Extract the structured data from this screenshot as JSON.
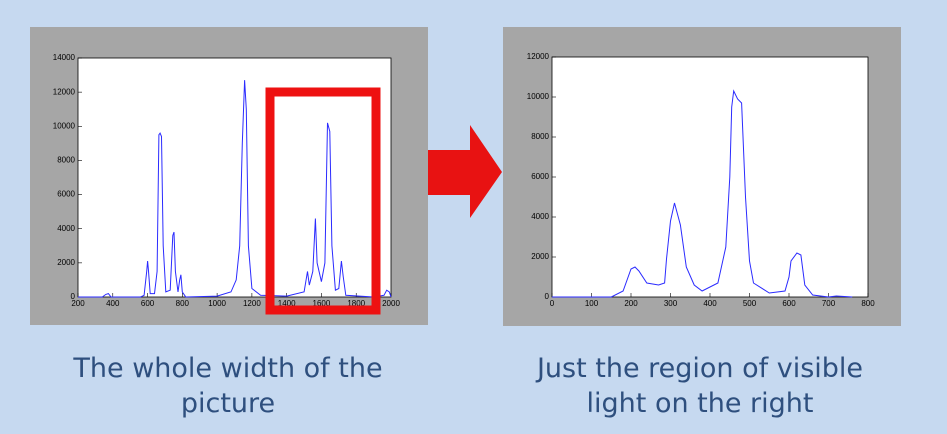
{
  "chart_data": [
    {
      "type": "line",
      "color": "#2b2bff",
      "x": [
        200,
        340,
        360,
        375,
        390,
        420,
        560,
        580,
        595,
        600,
        605,
        615,
        640,
        655,
        665,
        672,
        680,
        690,
        705,
        730,
        745,
        752,
        760,
        775,
        785,
        792,
        800,
        820,
        1000,
        1080,
        1110,
        1130,
        1145,
        1158,
        1168,
        1180,
        1200,
        1250,
        1400,
        1500,
        1520,
        1530,
        1550,
        1565,
        1575,
        1600,
        1620,
        1635,
        1648,
        1660,
        1680,
        1700,
        1715,
        1725,
        1740,
        1900,
        1960,
        1975,
        1990,
        2000
      ],
      "values": [
        0,
        0,
        150,
        200,
        0,
        0,
        0,
        100,
        1500,
        2100,
        1600,
        200,
        200,
        1500,
        9500,
        9600,
        9400,
        3000,
        300,
        400,
        3600,
        3800,
        1500,
        300,
        1000,
        1300,
        300,
        0,
        50,
        300,
        1000,
        3000,
        9000,
        12700,
        11000,
        3000,
        500,
        100,
        50,
        300,
        1500,
        700,
        1500,
        4600,
        2000,
        900,
        2000,
        10200,
        9700,
        3000,
        400,
        500,
        2100,
        1200,
        100,
        0,
        100,
        400,
        300,
        0
      ],
      "xlim": [
        200,
        2000
      ],
      "xticks": [
        200,
        400,
        600,
        800,
        1000,
        1200,
        1400,
        1600,
        1800,
        2000
      ],
      "ylim": [
        0,
        14000
      ],
      "yticks": [
        0,
        2000,
        4000,
        6000,
        8000,
        10000,
        12000,
        14000
      ]
    },
    {
      "type": "line",
      "color": "#2b2bff",
      "x": [
        0,
        150,
        180,
        200,
        210,
        220,
        240,
        270,
        285,
        290,
        300,
        310,
        325,
        340,
        360,
        380,
        420,
        440,
        450,
        455,
        460,
        470,
        480,
        490,
        500,
        510,
        550,
        590,
        600,
        605,
        620,
        630,
        640,
        660,
        700,
        720,
        760
      ],
      "values": [
        0,
        0,
        300,
        1400,
        1500,
        1300,
        700,
        600,
        700,
        1900,
        3800,
        4700,
        3600,
        1500,
        600,
        300,
        700,
        2500,
        6000,
        9500,
        10300,
        9900,
        9700,
        5000,
        1800,
        700,
        200,
        300,
        1000,
        1800,
        2200,
        2100,
        600,
        100,
        0,
        50,
        0
      ],
      "xlim": [
        0,
        800
      ],
      "xticks": [
        0,
        100,
        200,
        300,
        400,
        500,
        600,
        700,
        800
      ],
      "ylim": [
        0,
        12000
      ],
      "yticks": [
        0,
        2000,
        4000,
        6000,
        8000,
        10000,
        12000
      ]
    }
  ],
  "captions": [
    [
      "The whole width of the",
      "picture"
    ],
    [
      "Just the region of visible",
      "light on the right"
    ]
  ]
}
